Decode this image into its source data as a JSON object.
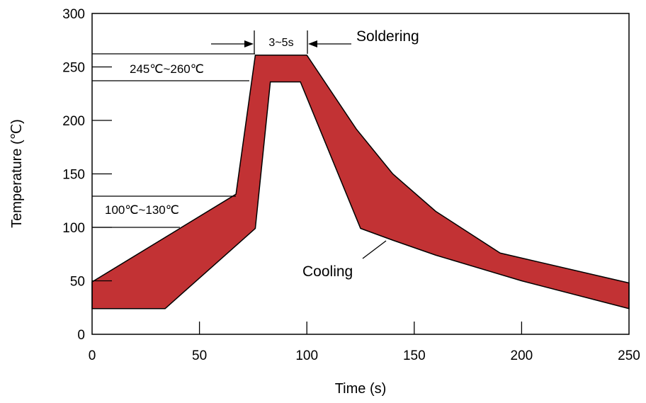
{
  "chart_data": {
    "type": "area",
    "xlabel": "Time (s)",
    "ylabel": "Temperature (℃)",
    "xlim": [
      0,
      250
    ],
    "ylim": [
      0,
      300
    ],
    "x_ticks": [
      0,
      50,
      100,
      150,
      200,
      250
    ],
    "y_ticks": [
      0,
      50,
      100,
      150,
      200,
      250,
      300
    ],
    "grid": false,
    "band_color": "#c23234",
    "band": {
      "upper": [
        [
          0,
          49
        ],
        [
          67,
          131
        ],
        [
          76,
          261
        ],
        [
          100,
          261
        ],
        [
          123,
          192
        ],
        [
          140,
          150
        ],
        [
          160,
          115
        ],
        [
          190,
          76
        ],
        [
          250,
          48
        ]
      ],
      "lower": [
        [
          0,
          24
        ],
        [
          34,
          24
        ],
        [
          76,
          99
        ],
        [
          83,
          236
        ],
        [
          97,
          236
        ],
        [
          125,
          99
        ],
        [
          140,
          88
        ],
        [
          160,
          74
        ],
        [
          200,
          50
        ],
        [
          250,
          24
        ]
      ]
    },
    "annotations": {
      "preheat": "100℃~130℃",
      "peak": "245℃~260℃",
      "duration": "3~5s",
      "soldering": "Soldering",
      "cooling": "Cooling"
    }
  }
}
